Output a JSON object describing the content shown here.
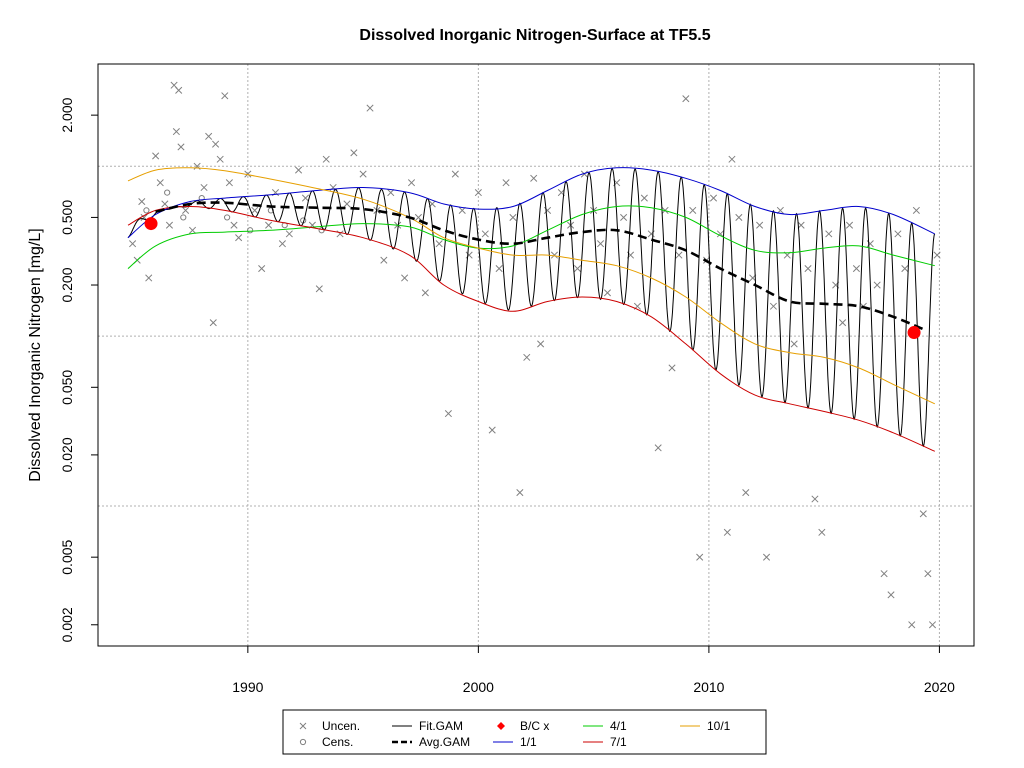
{
  "chart_data": {
    "type": "line",
    "title": "Dissolved Inorganic Nitrogen-Surface at TF5.5",
    "xlabel": "",
    "ylabel": "Dissolved Inorganic Nitrogen [mg/L]",
    "xlim": [
      1983.5,
      2021.5
    ],
    "ylim": [
      0.0015,
      4.0
    ],
    "yscale": "log",
    "x_ticks": [
      1990,
      2000,
      2010,
      2020
    ],
    "x_tick_labels": [
      "1990",
      "2000",
      "2010",
      "2020"
    ],
    "y_ticks": [
      0.002,
      0.005,
      0.02,
      0.05,
      0.2,
      0.5,
      2.0
    ],
    "y_tick_labels": [
      "0.002",
      "0.005",
      "0.020",
      "0.050",
      "0.200",
      "0.500",
      "2.000"
    ],
    "grid": true,
    "colors": {
      "points": "#808080",
      "fit": "#000000",
      "avg": "#000000",
      "bc": "#ff0000",
      "s11": "#0000cc",
      "s41": "#00cc00",
      "s71": "#cc0000",
      "s101": "#e69f00"
    },
    "legend_position": "bottom",
    "legend": [
      {
        "label": "Uncen.",
        "symbol": "x-cross",
        "color": "#808080"
      },
      {
        "label": "Fit.GAM",
        "symbol": "line",
        "color": "#000000"
      },
      {
        "label": "B/C x",
        "symbol": "diamond",
        "color": "#ff0000"
      },
      {
        "label": "4/1",
        "symbol": "line",
        "color": "#00cc00"
      },
      {
        "label": "10/1",
        "symbol": "line",
        "color": "#e69f00"
      },
      {
        "label": "Cens.",
        "symbol": "circle",
        "color": "#808080"
      },
      {
        "label": "Avg.GAM",
        "symbol": "dashed",
        "color": "#000000"
      },
      {
        "label": "1/1",
        "symbol": "line",
        "color": "#0000cc"
      },
      {
        "label": "7/1",
        "symbol": "line",
        "color": "#cc0000"
      }
    ],
    "series": [
      {
        "name": "1/1",
        "color": "#0000cc",
        "x": [
          1984.8,
          1986,
          1987.5,
          1989,
          1991,
          1993,
          1995,
          1997,
          1998.5,
          2000,
          2001.5,
          2003,
          2004.5,
          2006,
          2007.5,
          2009,
          2010.5,
          2012,
          2013.5,
          2015,
          2016.5,
          2018,
          2019.8
        ],
        "y": [
          0.38,
          0.52,
          0.62,
          0.65,
          0.68,
          0.72,
          0.75,
          0.7,
          0.6,
          0.56,
          0.58,
          0.72,
          0.9,
          0.98,
          0.95,
          0.85,
          0.72,
          0.58,
          0.52,
          0.55,
          0.58,
          0.52,
          0.4
        ]
      },
      {
        "name": "4/1",
        "color": "#00cc00",
        "x": [
          1984.8,
          1986,
          1987.5,
          1989,
          1991,
          1993,
          1995,
          1997,
          1998.5,
          2000,
          2001.5,
          2003,
          2004.5,
          2006,
          2007.5,
          2009,
          2010.5,
          2012,
          2013.5,
          2015,
          2016.5,
          2018,
          2019.8
        ],
        "y": [
          0.25,
          0.34,
          0.4,
          0.41,
          0.42,
          0.44,
          0.46,
          0.44,
          0.37,
          0.33,
          0.34,
          0.42,
          0.52,
          0.58,
          0.57,
          0.5,
          0.39,
          0.32,
          0.31,
          0.33,
          0.34,
          0.3,
          0.26
        ]
      },
      {
        "name": "7/1",
        "color": "#cc0000",
        "x": [
          1984.8,
          1986,
          1987.5,
          1989,
          1991,
          1993,
          1995,
          1997,
          1998.5,
          2000,
          2001.5,
          2003,
          2004.5,
          2006,
          2007.5,
          2009,
          2010.5,
          2012,
          2013.5,
          2015,
          2016.5,
          2018,
          2019.8
        ],
        "y": [
          0.45,
          0.55,
          0.58,
          0.55,
          0.48,
          0.43,
          0.38,
          0.3,
          0.2,
          0.16,
          0.14,
          0.16,
          0.17,
          0.16,
          0.13,
          0.09,
          0.06,
          0.045,
          0.04,
          0.036,
          0.032,
          0.027,
          0.021
        ]
      },
      {
        "name": "10/1",
        "color": "#e69f00",
        "x": [
          1984.8,
          1986,
          1987.5,
          1989,
          1991,
          1993,
          1995,
          1997,
          1998.5,
          2000,
          2001.5,
          2003,
          2004.5,
          2006,
          2007.5,
          2009,
          2010.5,
          2012,
          2013.5,
          2015,
          2016.5,
          2018,
          2019.8
        ],
        "y": [
          0.82,
          0.95,
          0.98,
          0.94,
          0.84,
          0.74,
          0.64,
          0.5,
          0.38,
          0.33,
          0.3,
          0.3,
          0.28,
          0.26,
          0.22,
          0.17,
          0.12,
          0.09,
          0.08,
          0.075,
          0.065,
          0.052,
          0.04
        ]
      },
      {
        "name": "Avg.GAM",
        "color": "#000000",
        "x": [
          1986,
          1987.5,
          1989,
          1991,
          1993,
          1995,
          1997,
          1998.5,
          2000,
          2001.5,
          2003,
          2004.5,
          2006,
          2007.5,
          2009,
          2010.5,
          2012,
          2013.5,
          2015,
          2016.5,
          2018,
          2019.3
        ],
        "y": [
          0.54,
          0.6,
          0.61,
          0.58,
          0.57,
          0.56,
          0.5,
          0.42,
          0.37,
          0.35,
          0.38,
          0.41,
          0.42,
          0.37,
          0.32,
          0.25,
          0.2,
          0.16,
          0.155,
          0.15,
          0.13,
          0.11
        ]
      }
    ],
    "fit_gam": {
      "name": "Fit.GAM",
      "start": 1984.8,
      "end": 2019.8,
      "period": 1.0
    },
    "bc_points": [
      {
        "x": 1985.8,
        "y": 0.46
      },
      {
        "x": 2018.9,
        "y": 0.105
      }
    ],
    "uncensored_points": [
      [
        1985.0,
        0.35
      ],
      [
        1985.2,
        0.28
      ],
      [
        1985.4,
        0.62
      ],
      [
        1985.5,
        0.5
      ],
      [
        1985.7,
        0.22
      ],
      [
        1986.0,
        1.15
      ],
      [
        1986.2,
        0.8
      ],
      [
        1986.4,
        0.6
      ],
      [
        1986.6,
        0.45
      ],
      [
        1986.8,
        3.0
      ],
      [
        1987.0,
        2.8
      ],
      [
        1986.9,
        1.6
      ],
      [
        1987.1,
        1.3
      ],
      [
        1987.3,
        0.55
      ],
      [
        1987.6,
        0.42
      ],
      [
        1987.8,
        1.0
      ],
      [
        1988.1,
        0.75
      ],
      [
        1988.3,
        1.5
      ],
      [
        1988.5,
        0.12
      ],
      [
        1988.6,
        1.35
      ],
      [
        1988.8,
        1.1
      ],
      [
        1989.0,
        2.6
      ],
      [
        1989.2,
        0.8
      ],
      [
        1989.4,
        0.45
      ],
      [
        1989.6,
        0.38
      ],
      [
        1990.0,
        0.9
      ],
      [
        1990.3,
        0.55
      ],
      [
        1990.6,
        0.25
      ],
      [
        1990.9,
        0.45
      ],
      [
        1991.2,
        0.7
      ],
      [
        1991.5,
        0.35
      ],
      [
        1991.8,
        0.4
      ],
      [
        1992.2,
        0.95
      ],
      [
        1992.5,
        0.65
      ],
      [
        1992.8,
        0.45
      ],
      [
        1993.1,
        0.19
      ],
      [
        1993.4,
        1.1
      ],
      [
        1993.7,
        0.75
      ],
      [
        1994.0,
        0.4
      ],
      [
        1994.3,
        0.6
      ],
      [
        1994.6,
        1.2
      ],
      [
        1995.0,
        0.9
      ],
      [
        1995.3,
        2.2
      ],
      [
        1995.6,
        0.55
      ],
      [
        1995.9,
        0.28
      ],
      [
        1996.2,
        0.7
      ],
      [
        1996.5,
        0.45
      ],
      [
        1996.8,
        0.22
      ],
      [
        1997.1,
        0.8
      ],
      [
        1997.4,
        0.5
      ],
      [
        1997.7,
        0.18
      ],
      [
        1998.0,
        0.6
      ],
      [
        1998.3,
        0.35
      ],
      [
        1998.7,
        0.035
      ],
      [
        1999.0,
        0.9
      ],
      [
        1999.3,
        0.55
      ],
      [
        1999.6,
        0.3
      ],
      [
        2000.0,
        0.7
      ],
      [
        2000.3,
        0.4
      ],
      [
        2000.6,
        0.028
      ],
      [
        2000.9,
        0.25
      ],
      [
        2001.2,
        0.8
      ],
      [
        2001.5,
        0.5
      ],
      [
        2001.8,
        0.012
      ],
      [
        2002.1,
        0.075
      ],
      [
        2002.4,
        0.85
      ],
      [
        2002.7,
        0.09
      ],
      [
        2003.0,
        0.55
      ],
      [
        2003.3,
        0.3
      ],
      [
        2003.6,
        0.7
      ],
      [
        2004.0,
        0.45
      ],
      [
        2004.3,
        0.25
      ],
      [
        2004.6,
        0.9
      ],
      [
        2005.0,
        0.55
      ],
      [
        2005.3,
        0.35
      ],
      [
        2005.6,
        0.18
      ],
      [
        2006.0,
        0.8
      ],
      [
        2006.3,
        0.5
      ],
      [
        2006.6,
        0.3
      ],
      [
        2006.9,
        0.15
      ],
      [
        2007.2,
        0.65
      ],
      [
        2007.5,
        0.4
      ],
      [
        2007.8,
        0.022
      ],
      [
        2008.1,
        0.55
      ],
      [
        2008.4,
        0.065
      ],
      [
        2008.7,
        0.3
      ],
      [
        2009.0,
        2.5
      ],
      [
        2009.3,
        0.55
      ],
      [
        2009.6,
        0.005
      ],
      [
        2009.9,
        0.28
      ],
      [
        2010.2,
        0.65
      ],
      [
        2010.5,
        0.4
      ],
      [
        2010.8,
        0.007
      ],
      [
        2011.0,
        1.1
      ],
      [
        2011.3,
        0.5
      ],
      [
        2011.6,
        0.012
      ],
      [
        2011.9,
        0.22
      ],
      [
        2012.2,
        0.45
      ],
      [
        2012.5,
        0.005
      ],
      [
        2012.8,
        0.15
      ],
      [
        2013.1,
        0.55
      ],
      [
        2013.4,
        0.3
      ],
      [
        2013.7,
        0.09
      ],
      [
        2014.0,
        0.45
      ],
      [
        2014.3,
        0.25
      ],
      [
        2014.6,
        0.011
      ],
      [
        2014.9,
        0.007
      ],
      [
        2015.2,
        0.4
      ],
      [
        2015.5,
        0.2
      ],
      [
        2015.8,
        0.12
      ],
      [
        2016.1,
        0.45
      ],
      [
        2016.4,
        0.25
      ],
      [
        2016.7,
        0.15
      ],
      [
        2017.0,
        0.35
      ],
      [
        2017.3,
        0.2
      ],
      [
        2017.6,
        0.004
      ],
      [
        2017.9,
        0.003
      ],
      [
        2018.2,
        0.4
      ],
      [
        2018.5,
        0.25
      ],
      [
        2018.8,
        0.002
      ],
      [
        2019.0,
        0.55
      ],
      [
        2019.3,
        0.009
      ],
      [
        2019.5,
        0.004
      ],
      [
        2019.7,
        0.002
      ],
      [
        2019.9,
        0.3
      ]
    ],
    "censored_points": [
      [
        1985.6,
        0.55
      ],
      [
        1986.5,
        0.7
      ],
      [
        1987.2,
        0.5
      ],
      [
        1988.0,
        0.65
      ],
      [
        1989.1,
        0.5
      ],
      [
        1990.1,
        0.42
      ],
      [
        1991.0,
        0.55
      ],
      [
        1991.6,
        0.45
      ],
      [
        1992.4,
        0.48
      ],
      [
        1993.2,
        0.42
      ]
    ]
  }
}
